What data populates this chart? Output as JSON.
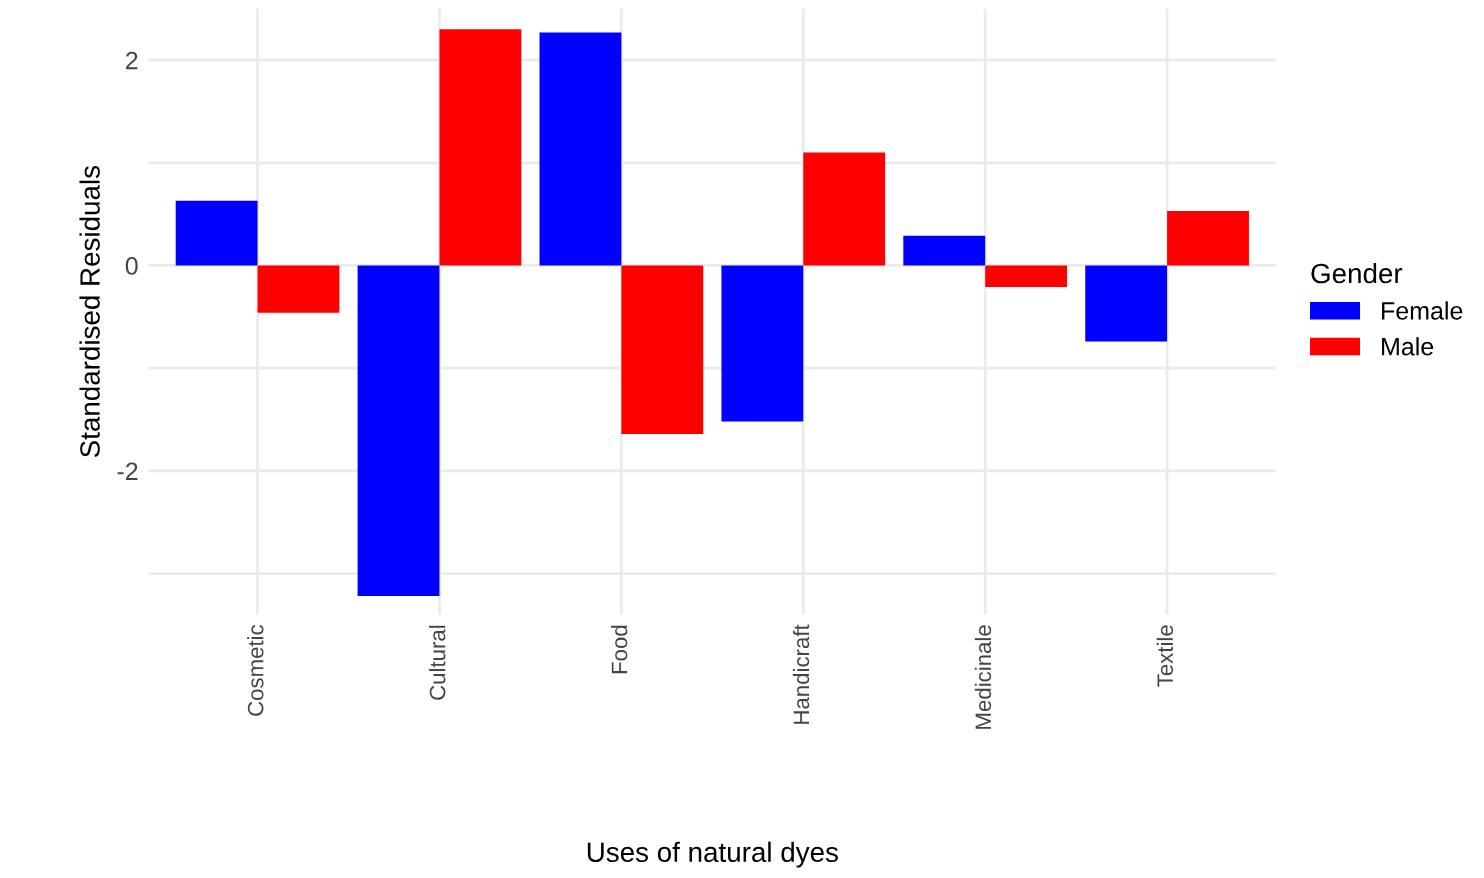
{
  "chart_data": {
    "type": "bar",
    "xlabel": "Uses of natural dyes",
    "ylabel": "Standardised Residuals",
    "legend_title": "Gender",
    "categories": [
      "Cosmetic",
      "Cultural",
      "Food",
      "Handicraft",
      "Medicinale",
      "Textile"
    ],
    "series": [
      {
        "name": "Female",
        "color": "#0000ff",
        "values": [
          0.63,
          -3.22,
          2.27,
          -1.52,
          0.29,
          -0.74
        ]
      },
      {
        "name": "Male",
        "color": "#ff0000",
        "values": [
          -0.46,
          2.3,
          -1.64,
          1.1,
          -0.21,
          0.53
        ]
      }
    ],
    "ylim": [
      -3.4,
      2.5
    ],
    "yticks": [
      {
        "value": -3,
        "label": null
      },
      -2,
      {
        "value": -1,
        "label": null
      },
      0,
      {
        "value": 1,
        "label": null
      },
      2
    ],
    "grid": true,
    "legend": "right"
  }
}
